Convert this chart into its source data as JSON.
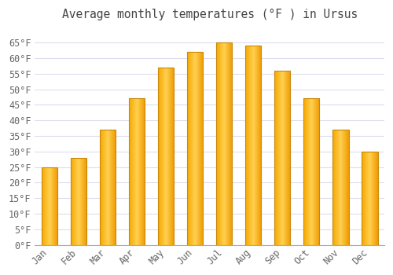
{
  "title": "Average monthly temperatures (°F ) in Ursus",
  "months": [
    "Jan",
    "Feb",
    "Mar",
    "Apr",
    "May",
    "Jun",
    "Jul",
    "Aug",
    "Sep",
    "Oct",
    "Nov",
    "Dec"
  ],
  "values": [
    25,
    28,
    37,
    47,
    57,
    62,
    65,
    64,
    56,
    47,
    37,
    30
  ],
  "bar_color_left": "#F5A800",
  "bar_color_right": "#FFD050",
  "bar_color_center": "#FFB820",
  "bar_edge_color": "#C8880A",
  "background_color": "#FFFFFF",
  "plot_bg_color": "#FFFFFF",
  "grid_color": "#DDDDEE",
  "text_color": "#666666",
  "title_color": "#444444",
  "ylim": [
    0,
    70
  ],
  "yticks": [
    0,
    5,
    10,
    15,
    20,
    25,
    30,
    35,
    40,
    45,
    50,
    55,
    60,
    65
  ],
  "title_fontsize": 10.5,
  "tick_fontsize": 8.5,
  "bar_width": 0.55
}
